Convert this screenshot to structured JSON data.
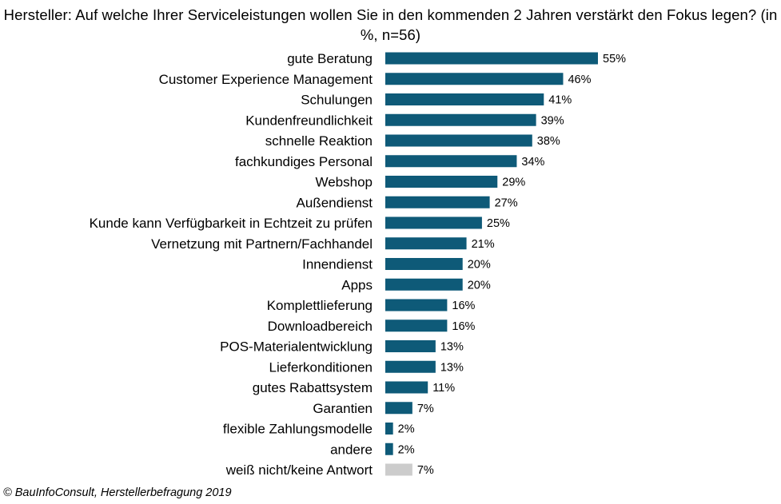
{
  "chart_data": {
    "type": "bar",
    "orientation": "horizontal",
    "title": "Hersteller: Auf welche Ihrer Serviceleistungen wollen Sie in den kommenden  2 Jahren verstärkt den Fokus legen? (in %, n=56)",
    "xlabel": "",
    "ylabel": "",
    "xlim": [
      0,
      55
    ],
    "grid": false,
    "legend": "none",
    "value_suffix": "%",
    "categories": [
      "gute Beratung",
      "Customer Experience Management",
      "Schulungen",
      "Kundenfreundlichkeit",
      "schnelle Reaktion",
      "fachkundiges Personal",
      "Webshop",
      "Außendienst",
      "Kunde kann Verfügbarkeit in Echtzeit zu prüfen",
      "Vernetzung mit Partnern/Fachhandel",
      "Innendienst",
      "Apps",
      "Komplettlieferung",
      "Downloadbereich",
      "POS-Materialentwicklung",
      "Lieferkonditionen",
      "gutes Rabattsystem",
      "Garantien",
      "flexible Zahlungsmodelle",
      "andere",
      "weiß nicht/keine Antwort"
    ],
    "values": [
      55,
      46,
      41,
      39,
      38,
      34,
      29,
      27,
      25,
      21,
      20,
      20,
      16,
      16,
      13,
      13,
      11,
      7,
      2,
      2,
      7
    ],
    "value_labels": [
      "55%",
      "46%",
      "41%",
      "39%",
      "38%",
      "34%",
      "29%",
      "27%",
      "25%",
      "21%",
      "20%",
      "20%",
      "16%",
      "16%",
      "13%",
      "13%",
      "11%",
      "7%",
      "2%",
      "2%",
      "7%"
    ],
    "colors": {
      "default": "#0e5a78",
      "no_answer": "#cccccc"
    },
    "bar_colors": [
      "default",
      "default",
      "default",
      "default",
      "default",
      "default",
      "default",
      "default",
      "default",
      "default",
      "default",
      "default",
      "default",
      "default",
      "default",
      "default",
      "default",
      "default",
      "default",
      "default",
      "no_answer"
    ]
  },
  "source": "© BauInfoConsult, Herstellerbefragung 2019"
}
